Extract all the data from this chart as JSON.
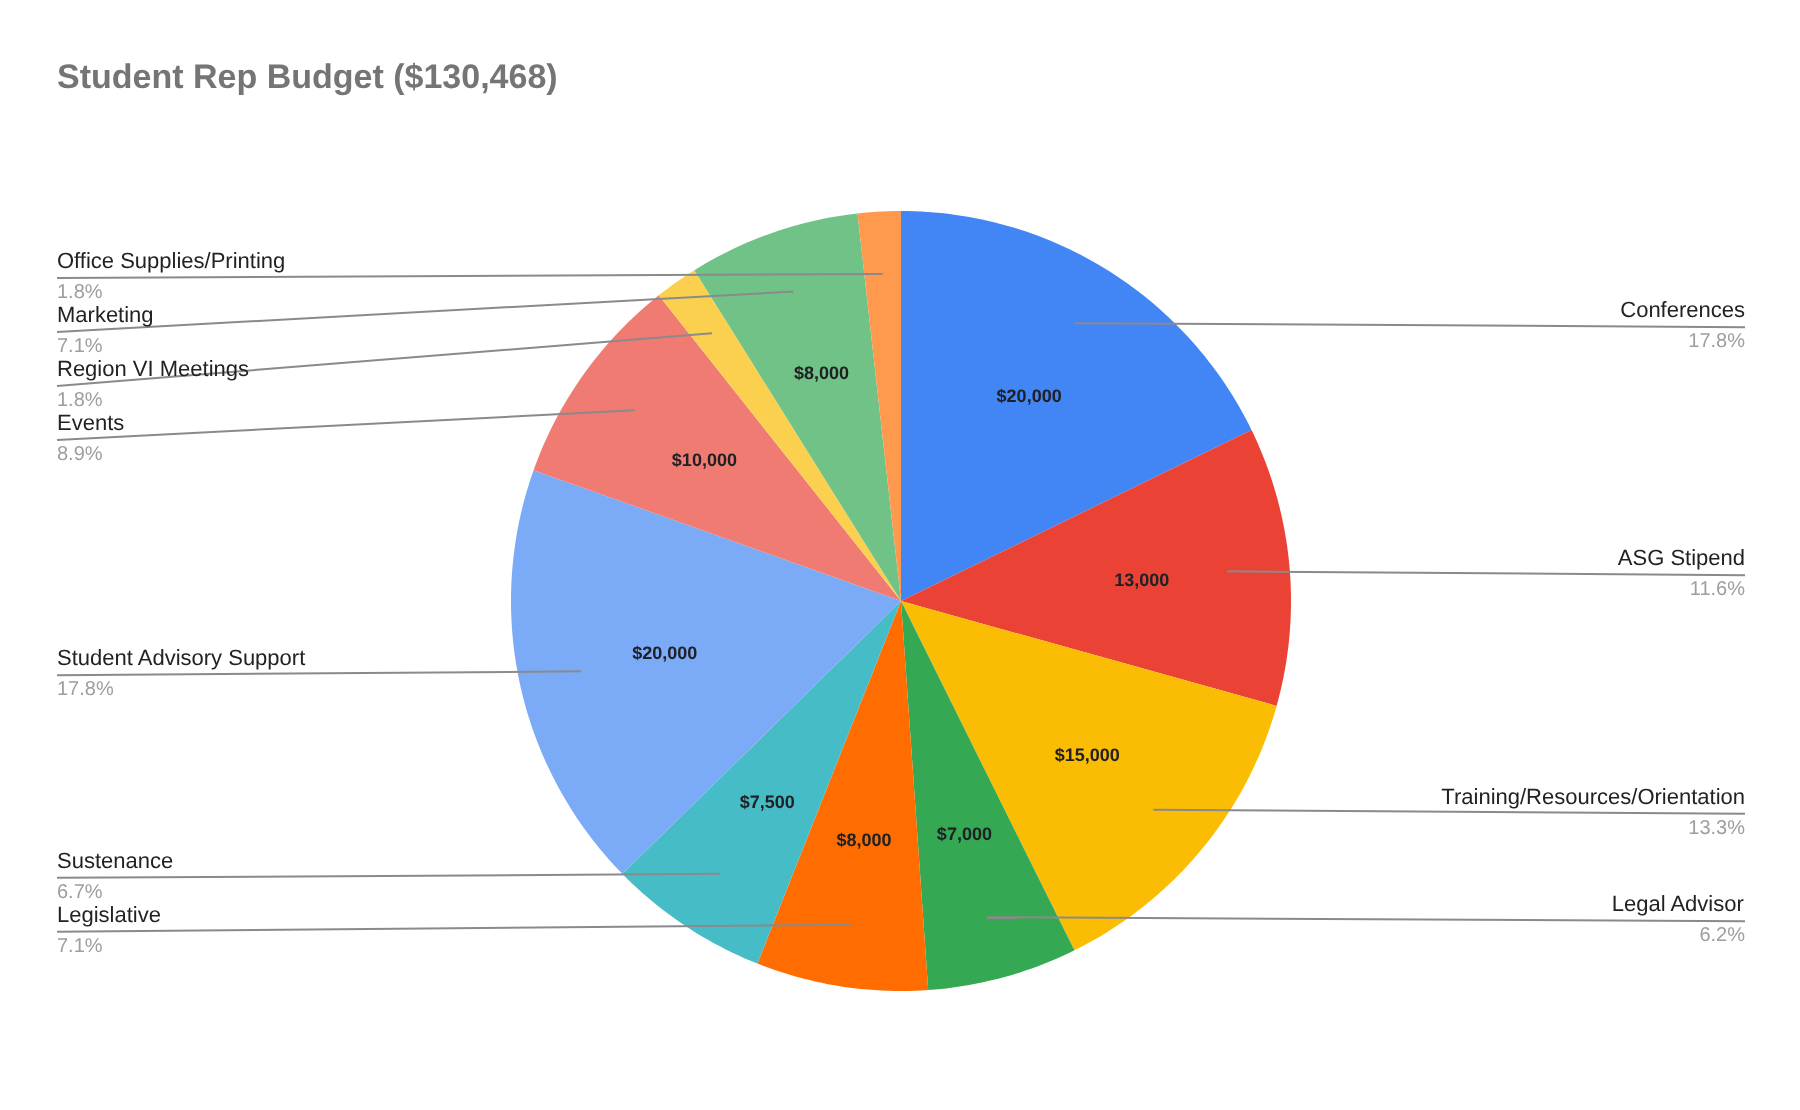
{
  "chart_data": {
    "type": "pie",
    "title": "Student Rep Budget ($130,468)",
    "categories": [
      "Conferences",
      "ASG Stipend",
      "Training/Resources/Orientation",
      "Legal Advisor",
      "Legislative",
      "Sustenance",
      "Student Advisory Support",
      "Events",
      "Region VI Meetings",
      "Marketing",
      "Office Supplies/Printing"
    ],
    "values": [
      20000,
      13000,
      15000,
      7000,
      8000,
      7500,
      20000,
      10000,
      2000,
      8000,
      2000
    ],
    "colors": [
      "#4285f4",
      "#ea4335",
      "#fbbc04",
      "#34a853",
      "#ff6d01",
      "#46bdc6",
      "#7baaf7",
      "#f07b72",
      "#fcd04f",
      "#71c287",
      "#ff994d"
    ],
    "value_labels": [
      "$20,000",
      "13,000",
      "$15,000",
      "$7,000",
      "$8,000",
      "$7,500",
      "$20,000",
      "$10,000",
      null,
      "$8,000",
      null
    ],
    "annotations": [
      {
        "text": "17.8%",
        "x": "Conferences"
      },
      {
        "text": "11.6%",
        "x": "ASG Stipend"
      },
      {
        "text": "13.3%",
        "x": "Training/Resources/Orientation"
      },
      {
        "text": "6.2%",
        "x": "Legal Advisor"
      },
      {
        "text": "7.1%",
        "x": "Legislative"
      },
      {
        "text": "6.7%",
        "x": "Sustenance"
      },
      {
        "text": "17.8%",
        "x": "Student Advisory Support"
      },
      {
        "text": "8.9%",
        "x": "Events"
      },
      {
        "text": "1.8%",
        "x": "Region VI Meetings"
      },
      {
        "text": "7.1%",
        "x": "Marketing"
      },
      {
        "text": "1.8%",
        "x": "Office Supplies/Printing"
      }
    ]
  }
}
